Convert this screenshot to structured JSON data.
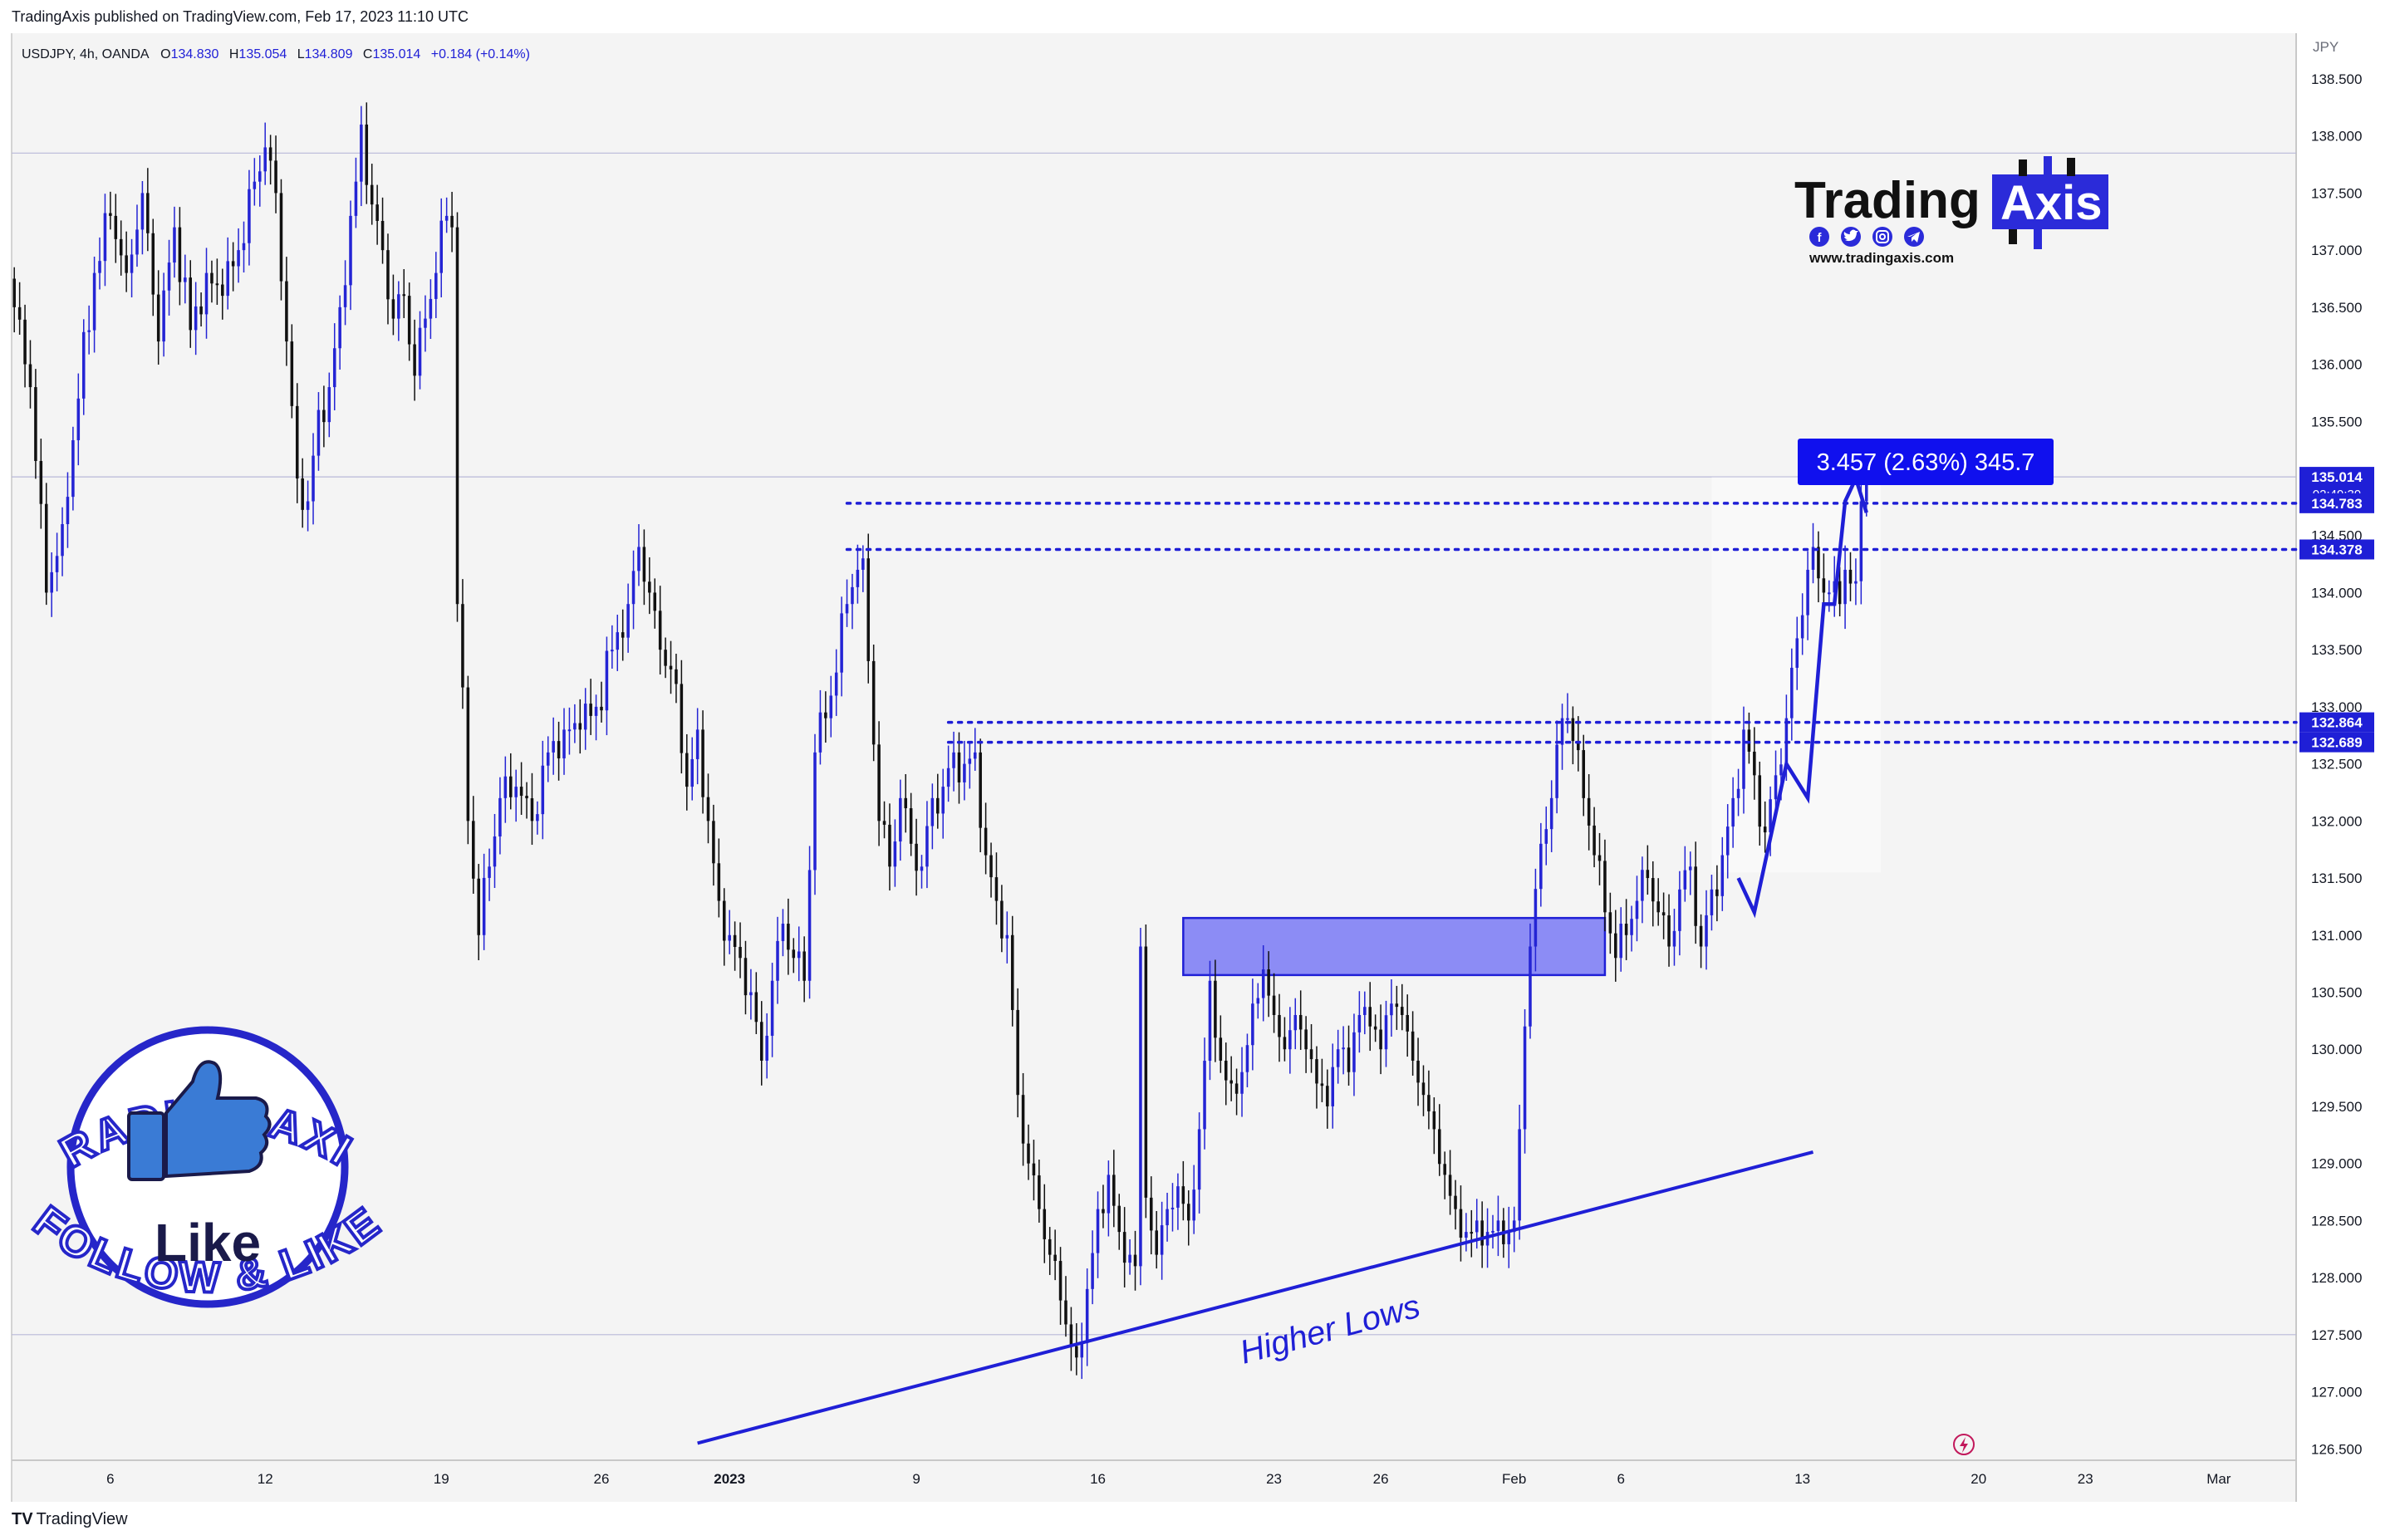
{
  "header": {
    "published": "TradingAxis published on TradingView.com, Feb 17, 2023 11:10 UTC"
  },
  "legend": {
    "symbol": "USDJPY, 4h, OANDA",
    "open_label": "O",
    "open": "134.830",
    "high_label": "H",
    "high": "135.054",
    "low_label": "L",
    "low": "134.809",
    "close_label": "C",
    "close": "135.014",
    "change": "+0.184 (+0.14%)"
  },
  "currency": "JPY",
  "footer": {
    "brand": "TradingView"
  },
  "logo": {
    "word1": "Trading",
    "word2": "Axis",
    "url": "www.tradingaxis.com",
    "social_icons": [
      "facebook-icon",
      "twitter-icon",
      "instagram-icon",
      "telegram-icon"
    ]
  },
  "badge": {
    "top_text": "TRADING AXIS",
    "bottom_text": "FOLLOW & LIKE",
    "like": "Like",
    "icon": "thumbs-up-icon"
  },
  "measure_label": "3.457 (2.63%) 345.7",
  "annotation": "Higher Lows",
  "colors": {
    "up": "#2424d4",
    "down": "#111111",
    "accent": "#1f1fd6",
    "zone": "#8c8cf5",
    "background": "#f4f4f4"
  },
  "chart_data": {
    "type": "candlestick",
    "symbol": "USDJPY",
    "interval": "4h",
    "yaxis": {
      "range": [
        126.4,
        138.9
      ],
      "ticks": [
        "126.500",
        "127.000",
        "127.500",
        "128.000",
        "128.500",
        "129.000",
        "129.500",
        "130.000",
        "130.500",
        "131.000",
        "131.500",
        "132.000",
        "132.500",
        "133.000",
        "133.500",
        "134.000",
        "134.500",
        "135.000",
        "135.500",
        "136.000",
        "136.500",
        "137.000",
        "137.500",
        "138.000",
        "138.500"
      ]
    },
    "xaxis": {
      "ticks": [
        {
          "label": "6",
          "bar": 18
        },
        {
          "label": "12",
          "bar": 47
        },
        {
          "label": "19",
          "bar": 80
        },
        {
          "label": "26",
          "bar": 110
        },
        {
          "label": "2023",
          "bar": 134,
          "bold": true
        },
        {
          "label": "9",
          "bar": 169
        },
        {
          "label": "16",
          "bar": 203
        },
        {
          "label": "23",
          "bar": 236
        },
        {
          "label": "26",
          "bar": 256
        },
        {
          "label": "Feb",
          "bar": 281
        },
        {
          "label": "6",
          "bar": 301
        },
        {
          "label": "13",
          "bar": 335
        },
        {
          "label": "20",
          "bar": 368
        },
        {
          "label": "23",
          "bar": 388
        },
        {
          "label": "Mar",
          "bar": 413
        }
      ],
      "total_slots": 428
    },
    "anchors": [
      [
        0,
        136.5
      ],
      [
        3,
        135.8
      ],
      [
        6,
        134.0
      ],
      [
        9,
        134.6
      ],
      [
        12,
        135.7
      ],
      [
        15,
        136.8
      ],
      [
        18,
        137.3
      ],
      [
        21,
        136.8
      ],
      [
        24,
        137.5
      ],
      [
        27,
        136.2
      ],
      [
        30,
        137.2
      ],
      [
        33,
        136.3
      ],
      [
        36,
        136.8
      ],
      [
        39,
        136.6
      ],
      [
        42,
        137.0
      ],
      [
        45,
        137.6
      ],
      [
        47,
        137.9
      ],
      [
        49,
        137.5
      ],
      [
        51,
        136.2
      ],
      [
        53,
        135.0
      ],
      [
        55,
        134.8
      ],
      [
        57,
        135.6
      ],
      [
        59,
        135.8
      ],
      [
        61,
        136.5
      ],
      [
        63,
        137.3
      ],
      [
        64,
        137.6
      ],
      [
        65,
        138.1
      ],
      [
        67,
        137.4
      ],
      [
        69,
        137.0
      ],
      [
        71,
        136.4
      ],
      [
        73,
        136.6
      ],
      [
        75,
        135.9
      ],
      [
        77,
        136.4
      ],
      [
        79,
        136.8
      ],
      [
        81,
        137.3
      ],
      [
        82,
        137.2
      ],
      [
        83,
        133.9
      ],
      [
        85,
        132.0
      ],
      [
        87,
        131.0
      ],
      [
        89,
        131.6
      ],
      [
        91,
        132.2
      ],
      [
        94,
        132.3
      ],
      [
        97,
        132.0
      ],
      [
        100,
        132.6
      ],
      [
        103,
        132.8
      ],
      [
        106,
        132.8
      ],
      [
        109,
        133.0
      ],
      [
        112,
        133.5
      ],
      [
        115,
        133.9
      ],
      [
        117,
        134.4
      ],
      [
        119,
        134.0
      ],
      [
        121,
        133.5
      ],
      [
        124,
        133.2
      ],
      [
        126,
        132.3
      ],
      [
        128,
        132.8
      ],
      [
        130,
        132.0
      ],
      [
        132,
        131.3
      ],
      [
        134,
        131.0
      ],
      [
        136,
        130.8
      ],
      [
        138,
        130.5
      ],
      [
        140,
        129.9
      ],
      [
        142,
        130.6
      ],
      [
        144,
        131.1
      ],
      [
        146,
        130.8
      ],
      [
        148,
        130.6
      ],
      [
        150,
        132.6
      ],
      [
        152,
        132.9
      ],
      [
        154,
        133.3
      ],
      [
        156,
        133.9
      ],
      [
        158,
        134.2
      ],
      [
        159,
        134.3
      ],
      [
        160,
        133.4
      ],
      [
        162,
        132.0
      ],
      [
        164,
        131.6
      ],
      [
        166,
        132.2
      ],
      [
        168,
        131.8
      ],
      [
        170,
        131.6
      ],
      [
        172,
        132.2
      ],
      [
        174,
        132.3
      ],
      [
        176,
        132.6
      ],
      [
        178,
        132.5
      ],
      [
        180,
        132.6
      ],
      [
        182,
        131.7
      ],
      [
        184,
        131.3
      ],
      [
        186,
        131.0
      ],
      [
        188,
        129.6
      ],
      [
        190,
        129.0
      ],
      [
        192,
        128.6
      ],
      [
        194,
        128.2
      ],
      [
        196,
        127.8
      ],
      [
        198,
        127.4
      ],
      [
        199,
        127.3
      ],
      [
        201,
        127.9
      ],
      [
        203,
        128.6
      ],
      [
        205,
        128.9
      ],
      [
        207,
        128.4
      ],
      [
        209,
        128.2
      ],
      [
        210,
        128.1
      ],
      [
        211,
        130.9
      ],
      [
        212,
        128.7
      ],
      [
        214,
        128.2
      ],
      [
        216,
        128.6
      ],
      [
        218,
        128.8
      ],
      [
        220,
        128.5
      ],
      [
        222,
        129.3
      ],
      [
        224,
        130.6
      ],
      [
        226,
        129.9
      ],
      [
        228,
        129.7
      ],
      [
        230,
        129.8
      ],
      [
        232,
        130.4
      ],
      [
        234,
        130.7
      ],
      [
        236,
        130.3
      ],
      [
        238,
        130.0
      ],
      [
        240,
        130.3
      ],
      [
        242,
        130.0
      ],
      [
        244,
        129.7
      ],
      [
        246,
        129.5
      ],
      [
        248,
        130.0
      ],
      [
        250,
        129.8
      ],
      [
        252,
        130.3
      ],
      [
        254,
        130.2
      ],
      [
        256,
        130.0
      ],
      [
        258,
        130.4
      ],
      [
        260,
        130.3
      ],
      [
        262,
        129.9
      ],
      [
        264,
        129.6
      ],
      [
        266,
        129.3
      ],
      [
        268,
        128.9
      ],
      [
        270,
        128.6
      ],
      [
        272,
        128.4
      ],
      [
        274,
        128.5
      ],
      [
        276,
        128.4
      ],
      [
        278,
        128.5
      ],
      [
        280,
        128.4
      ],
      [
        281,
        128.5
      ],
      [
        282,
        129.3
      ],
      [
        283,
        130.2
      ],
      [
        284,
        130.9
      ],
      [
        286,
        131.8
      ],
      [
        288,
        132.2
      ],
      [
        290,
        132.9
      ],
      [
        291,
        132.9
      ],
      [
        292,
        132.7
      ],
      [
        294,
        132.2
      ],
      [
        296,
        131.7
      ],
      [
        298,
        131.2
      ],
      [
        300,
        130.8
      ],
      [
        302,
        131.0
      ],
      [
        304,
        131.3
      ],
      [
        306,
        131.5
      ],
      [
        308,
        131.2
      ],
      [
        310,
        130.9
      ],
      [
        312,
        131.4
      ],
      [
        314,
        131.6
      ],
      [
        316,
        130.9
      ],
      [
        318,
        131.4
      ],
      [
        320,
        131.7
      ],
      [
        322,
        132.2
      ],
      [
        324,
        132.8
      ],
      [
        326,
        132.4
      ],
      [
        328,
        131.9
      ],
      [
        330,
        132.4
      ],
      [
        332,
        132.9
      ],
      [
        334,
        133.6
      ],
      [
        336,
        134.2
      ],
      [
        337,
        134.4
      ],
      [
        339,
        134.0
      ],
      [
        341,
        134.1
      ],
      [
        342,
        133.9
      ],
      [
        343,
        134.2
      ],
      [
        345,
        134.1
      ],
      [
        346,
        134.8
      ],
      [
        347,
        135.01
      ]
    ],
    "last_price": 135.014,
    "countdown": "02:49:39",
    "price_labels": [
      {
        "value": "135.014",
        "sub": "02:49:39",
        "y": 135.014,
        "kind": "current"
      },
      {
        "value": "134.783",
        "y": 134.783,
        "kind": "level"
      },
      {
        "value": "134.378",
        "y": 134.378,
        "kind": "level"
      },
      {
        "value": "132.864",
        "y": 132.864,
        "kind": "level"
      },
      {
        "value": "132.689",
        "y": 132.689,
        "kind": "level"
      }
    ],
    "levels": [
      {
        "y": 134.783,
        "from_bar": 156
      },
      {
        "y": 134.378,
        "from_bar": 156
      },
      {
        "y": 132.864,
        "from_bar": 175
      },
      {
        "y": 132.689,
        "from_bar": 175
      }
    ],
    "hlines": [
      137.85,
      135.014,
      127.5
    ],
    "zone": {
      "x1_bar": 219,
      "x2_bar": 298,
      "y_top": 131.15,
      "y_bottom": 130.65
    },
    "trendline": {
      "x1_bar": 128,
      "y1": 126.55,
      "x2_bar": 337,
      "y2": 129.1
    },
    "projection": [
      [
        323,
        131.5
      ],
      [
        326,
        131.2
      ],
      [
        332,
        132.5
      ],
      [
        336,
        132.2
      ],
      [
        339,
        133.9
      ],
      [
        341,
        133.9
      ],
      [
        343,
        134.8
      ],
      [
        345,
        135.0
      ],
      [
        347,
        134.7
      ]
    ],
    "measure": {
      "x1_bar": 318,
      "x2_bar": 345,
      "y_top": 135.01,
      "y_bottom": 131.55
    }
  }
}
